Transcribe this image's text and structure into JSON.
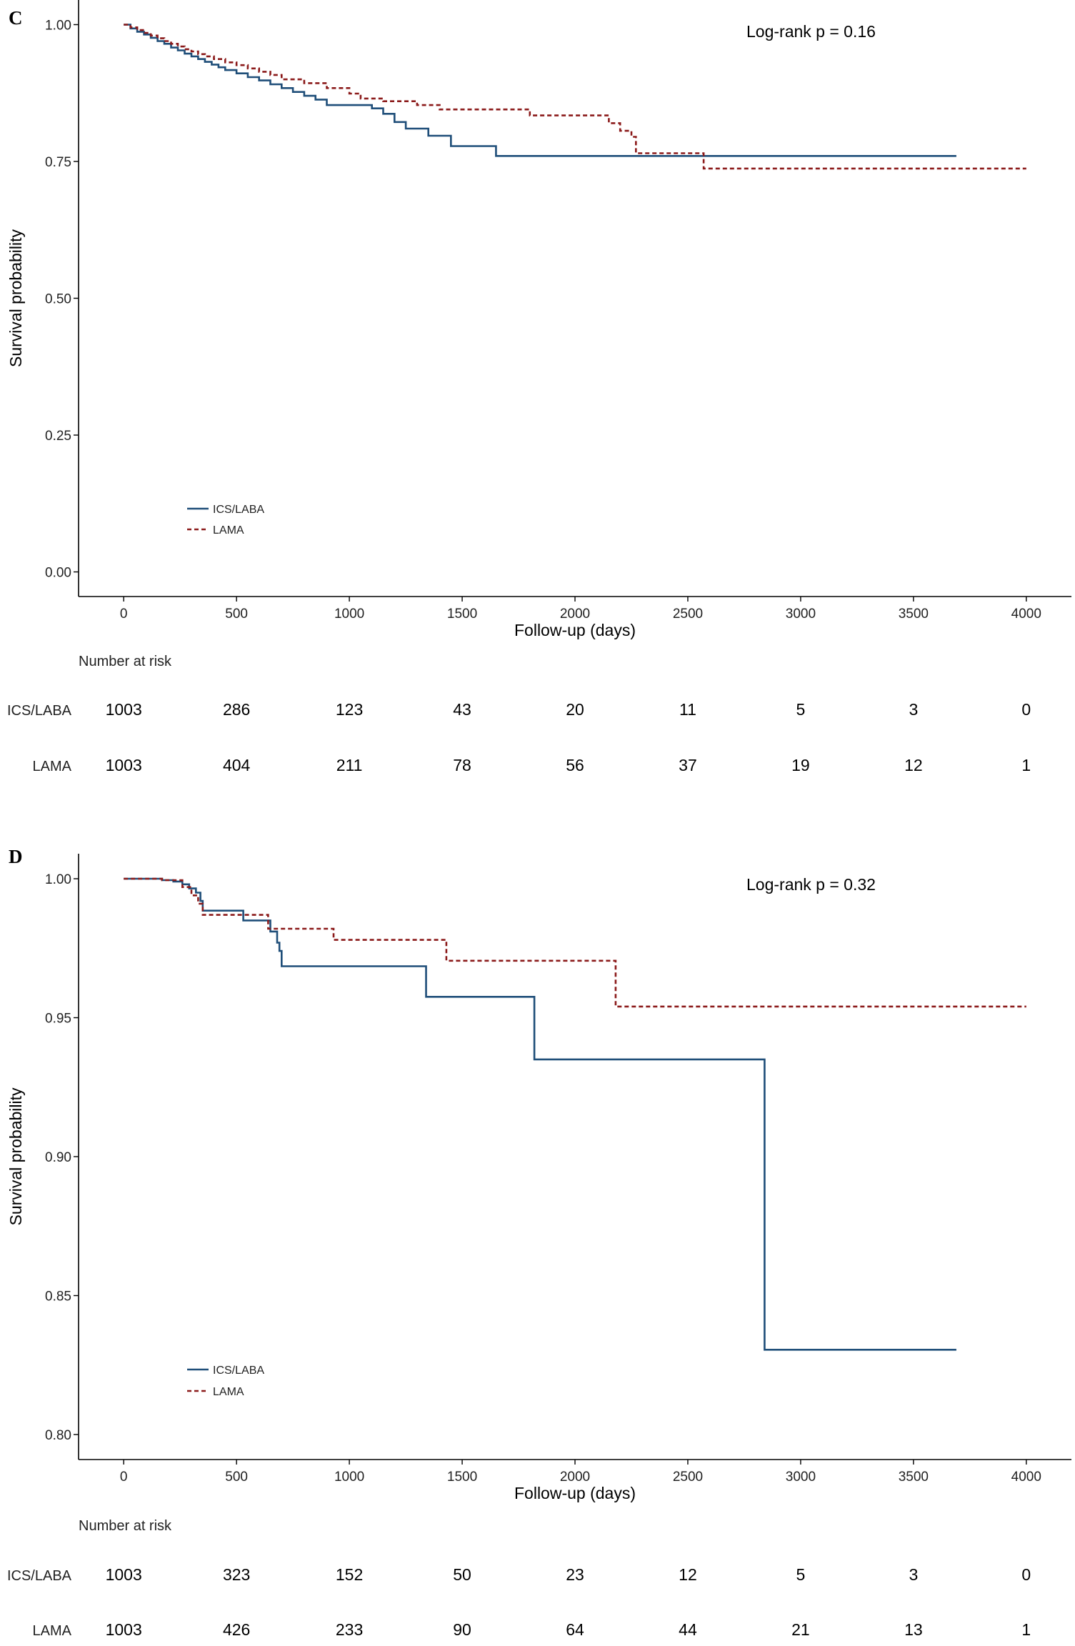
{
  "chart_data": [
    {
      "type": "line",
      "panel_label": "C",
      "annotation": "Log-rank  p = 0.16",
      "xlabel": "Follow-up (days)",
      "ylabel": "Survival probability",
      "xlim": [
        -200,
        4200
      ],
      "ylim": [
        -0.045,
        1.045
      ],
      "x_ticks": [
        0,
        500,
        1000,
        1500,
        2000,
        2500,
        3000,
        3500,
        4000
      ],
      "x_tick_labels": [
        "0",
        "500",
        "1000",
        "1500",
        "2000",
        "2500",
        "3000",
        "3500",
        "4000"
      ],
      "y_ticks": [
        0,
        0.25,
        0.5,
        0.75,
        1.0
      ],
      "y_tick_labels": [
        "0.00",
        "0.25",
        "0.50",
        "0.75",
        "1.00"
      ],
      "grid": false,
      "legend_position": "bottom-left",
      "series": [
        {
          "name": "ICS/LABA",
          "color": "#1f4e79",
          "style": "solid",
          "x": [
            0,
            30,
            60,
            90,
            120,
            150,
            180,
            210,
            240,
            270,
            300,
            330,
            360,
            390,
            420,
            450,
            500,
            550,
            600,
            650,
            700,
            750,
            800,
            850,
            900,
            1000,
            1100,
            1150,
            1200,
            1250,
            1350,
            1450,
            1650,
            2000,
            2500,
            3000,
            3500,
            3690
          ],
          "y": [
            1.0,
            0.993,
            0.987,
            0.982,
            0.976,
            0.97,
            0.965,
            0.958,
            0.953,
            0.947,
            0.942,
            0.937,
            0.932,
            0.927,
            0.922,
            0.917,
            0.911,
            0.904,
            0.898,
            0.891,
            0.884,
            0.877,
            0.87,
            0.863,
            0.853,
            0.853,
            0.847,
            0.837,
            0.822,
            0.81,
            0.797,
            0.778,
            0.76,
            0.76,
            0.76,
            0.76,
            0.76,
            0.76
          ]
        },
        {
          "name": "LAMA",
          "color": "#8b1a1a",
          "style": "dashed",
          "x": [
            0,
            30,
            60,
            90,
            120,
            150,
            180,
            210,
            240,
            270,
            300,
            330,
            360,
            400,
            450,
            500,
            550,
            600,
            650,
            700,
            800,
            900,
            1000,
            1050,
            1150,
            1300,
            1400,
            1800,
            2050,
            2150,
            2200,
            2250,
            2270,
            2570,
            3000,
            3500,
            4000
          ],
          "y": [
            1.0,
            0.995,
            0.99,
            0.985,
            0.98,
            0.975,
            0.97,
            0.965,
            0.96,
            0.955,
            0.951,
            0.946,
            0.942,
            0.937,
            0.931,
            0.926,
            0.92,
            0.914,
            0.908,
            0.9,
            0.893,
            0.884,
            0.874,
            0.865,
            0.86,
            0.853,
            0.845,
            0.834,
            0.834,
            0.82,
            0.806,
            0.795,
            0.765,
            0.737,
            0.737,
            0.737,
            0.737
          ]
        }
      ],
      "risk_table": {
        "title": "Number at risk",
        "times": [
          0,
          500,
          1000,
          1500,
          2000,
          2500,
          3000,
          3500,
          4000
        ],
        "rows": [
          {
            "label": "ICS/LABA",
            "values": [
              "1003",
              "286",
              "123",
              "43",
              "20",
              "11",
              "5",
              "3",
              "0"
            ]
          },
          {
            "label": "LAMA",
            "values": [
              "1003",
              "404",
              "211",
              "78",
              "56",
              "37",
              "19",
              "12",
              "1"
            ]
          }
        ]
      }
    },
    {
      "type": "line",
      "panel_label": "D",
      "annotation": "Log-rank  p = 0.32",
      "xlabel": "Follow-up (days)",
      "ylabel": "Survival probability",
      "xlim": [
        -200,
        4200
      ],
      "ylim": [
        0.791,
        1.009
      ],
      "x_ticks": [
        0,
        500,
        1000,
        1500,
        2000,
        2500,
        3000,
        3500,
        4000
      ],
      "x_tick_labels": [
        "0",
        "500",
        "1000",
        "1500",
        "2000",
        "2500",
        "3000",
        "3500",
        "4000"
      ],
      "y_ticks": [
        0.8,
        0.85,
        0.9,
        0.95,
        1.0
      ],
      "y_tick_labels": [
        "0.80",
        "0.85",
        "0.90",
        "0.95",
        "1.00"
      ],
      "grid": false,
      "legend_position": "bottom-left",
      "series": [
        {
          "name": "ICS/LABA",
          "color": "#1f4e79",
          "style": "solid",
          "x": [
            0,
            170,
            220,
            260,
            290,
            320,
            340,
            350,
            530,
            650,
            680,
            690,
            700,
            1340,
            1820,
            2840,
            3690
          ],
          "y": [
            1.0,
            0.9995,
            0.999,
            0.998,
            0.9965,
            0.995,
            0.992,
            0.9885,
            0.985,
            0.981,
            0.977,
            0.974,
            0.9685,
            0.9575,
            0.935,
            0.8305,
            0.8305
          ]
        },
        {
          "name": "LAMA",
          "color": "#8b1a1a",
          "style": "dashed",
          "x": [
            0,
            170,
            260,
            300,
            330,
            350,
            540,
            640,
            930,
            1430,
            2180,
            4000
          ],
          "y": [
            1.0,
            0.9995,
            0.997,
            0.994,
            0.991,
            0.987,
            0.987,
            0.982,
            0.978,
            0.9705,
            0.954,
            0.954
          ]
        }
      ],
      "risk_table": {
        "title": "Number at risk",
        "times": [
          0,
          500,
          1000,
          1500,
          2000,
          2500,
          3000,
          3500,
          4000
        ],
        "rows": [
          {
            "label": "ICS/LABA",
            "values": [
              "1003",
              "323",
              "152",
              "50",
              "23",
              "12",
              "5",
              "3",
              "0"
            ]
          },
          {
            "label": "LAMA",
            "values": [
              "1003",
              "426",
              "233",
              "90",
              "64",
              "44",
              "21",
              "13",
              "1"
            ]
          }
        ]
      }
    }
  ]
}
